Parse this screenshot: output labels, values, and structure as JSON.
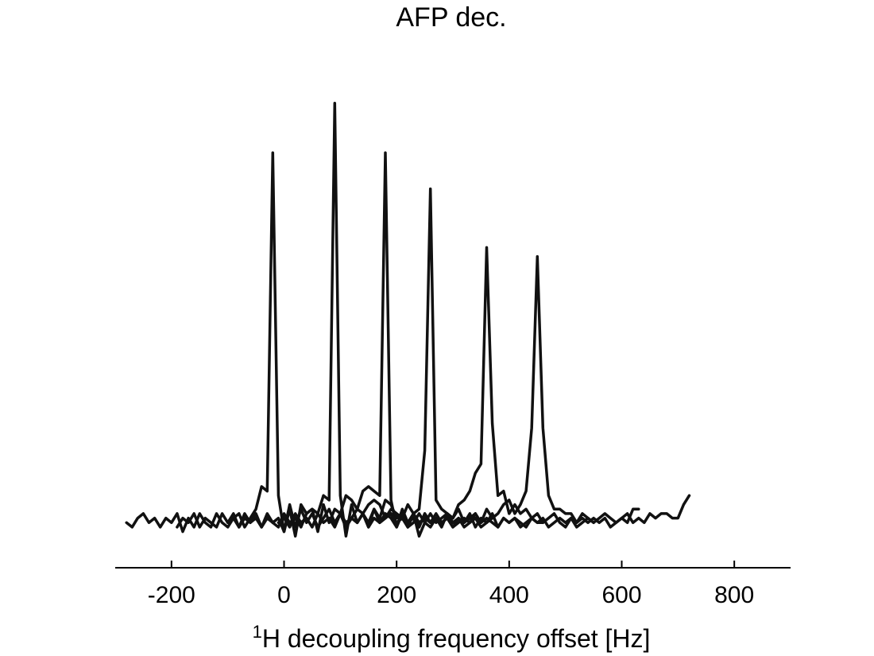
{
  "chart_data": {
    "type": "line",
    "title": "AFP dec.",
    "xlabel_superscript": "1",
    "xlabel": "H decoupling frequency offset [Hz]",
    "ylabel": "",
    "xlim": [
      -300,
      900
    ],
    "ylim": [
      -0.1,
      1.0
    ],
    "xticks": [
      -200,
      0,
      200,
      400,
      600,
      800
    ],
    "xtick_labels": [
      "-200",
      "0",
      "200",
      "400",
      "600",
      "800"
    ],
    "y_axis_visible": false,
    "grid": false,
    "line_color": "#111111",
    "series": [
      {
        "x": [
          -280,
          -270,
          -260,
          -250,
          -240,
          -230,
          -220,
          -210,
          -200,
          -190,
          -180,
          -170,
          -160,
          -150,
          -140,
          -130,
          -120,
          -110,
          -100,
          -90,
          -80,
          -70,
          -60,
          -50,
          -40,
          -30,
          -20,
          -10,
          0,
          10,
          20,
          30,
          40,
          50,
          60,
          70,
          80,
          90,
          100,
          110,
          120,
          130,
          140,
          150,
          160,
          170,
          180,
          190,
          200,
          210,
          220,
          230,
          240,
          250,
          260,
          270,
          280
        ],
        "y": [
          0.0,
          -0.01,
          0.01,
          0.02,
          0.0,
          0.01,
          -0.01,
          0.01,
          0.0,
          0.02,
          -0.02,
          0.01,
          -0.01,
          0.02,
          0.0,
          -0.01,
          0.02,
          0.0,
          -0.01,
          0.01,
          0.02,
          -0.01,
          0.01,
          0.03,
          0.08,
          0.07,
          0.82,
          0.06,
          -0.02,
          0.04,
          -0.01,
          0.03,
          0.0,
          0.02,
          -0.01,
          0.01,
          0.03,
          0.0,
          0.02,
          -0.01,
          0.01,
          0.0,
          0.02,
          -0.01,
          0.01,
          0.0,
          0.01,
          0.02,
          0.0,
          0.01,
          -0.01,
          0.0,
          0.02,
          0.0,
          -0.01,
          0.01,
          0.0
        ]
      },
      {
        "x": [
          -190,
          -180,
          -170,
          -160,
          -150,
          -140,
          -130,
          -120,
          -110,
          -100,
          -90,
          -80,
          -70,
          -60,
          -50,
          -40,
          -30,
          -20,
          -10,
          0,
          10,
          20,
          30,
          40,
          50,
          60,
          70,
          80,
          90,
          100,
          110,
          120,
          130,
          140,
          150,
          160,
          170,
          180,
          190,
          200,
          210,
          220,
          230,
          240,
          250,
          260,
          270,
          280,
          290,
          300,
          310,
          320,
          330,
          340,
          350,
          360,
          370
        ],
        "y": [
          -0.01,
          0.01,
          0.0,
          0.02,
          -0.01,
          0.01,
          0.0,
          -0.01,
          0.02,
          0.0,
          0.01,
          -0.01,
          0.02,
          0.0,
          0.01,
          -0.01,
          0.02,
          0.0,
          0.01,
          -0.02,
          0.03,
          -0.03,
          0.04,
          0.02,
          0.03,
          0.02,
          0.06,
          0.05,
          0.93,
          0.06,
          -0.03,
          0.04,
          0.0,
          0.02,
          -0.01,
          0.03,
          0.0,
          0.02,
          0.01,
          -0.01,
          0.02,
          0.0,
          0.01,
          -0.01,
          0.02,
          0.0,
          0.01,
          0.0,
          0.01,
          -0.01,
          0.0,
          0.01,
          0.0,
          0.01,
          -0.01,
          0.0,
          0.01
        ]
      },
      {
        "x": [
          -100,
          -90,
          -80,
          -70,
          -60,
          -50,
          -40,
          -30,
          -20,
          -10,
          0,
          10,
          20,
          30,
          40,
          50,
          60,
          70,
          80,
          90,
          100,
          110,
          120,
          130,
          140,
          150,
          160,
          170,
          180,
          190,
          200,
          210,
          220,
          230,
          240,
          250,
          260,
          270,
          280,
          290,
          300,
          310,
          320,
          330,
          340,
          350,
          360,
          370,
          380,
          390,
          400,
          410,
          420,
          430,
          440,
          450,
          460
        ],
        "y": [
          0.0,
          0.02,
          -0.01,
          0.01,
          0.0,
          0.02,
          -0.01,
          0.01,
          0.0,
          -0.01,
          0.02,
          0.0,
          0.01,
          -0.01,
          0.02,
          0.03,
          -0.02,
          0.04,
          0.0,
          0.03,
          0.02,
          0.06,
          0.05,
          0.03,
          0.07,
          0.08,
          0.07,
          0.06,
          0.82,
          0.05,
          -0.01,
          0.03,
          0.0,
          0.02,
          -0.01,
          0.02,
          0.0,
          0.01,
          -0.01,
          0.02,
          0.0,
          0.01,
          -0.01,
          0.0,
          0.02,
          0.0,
          0.01,
          0.0,
          -0.01,
          0.01,
          0.0,
          0.01,
          0.0,
          -0.01,
          0.01,
          0.0,
          0.0
        ]
      },
      {
        "x": [
          -10,
          0,
          10,
          20,
          30,
          40,
          50,
          60,
          70,
          80,
          90,
          100,
          110,
          120,
          130,
          140,
          150,
          160,
          170,
          180,
          190,
          200,
          210,
          220,
          230,
          240,
          250,
          260,
          270,
          280,
          290,
          300,
          310,
          320,
          330,
          340,
          350,
          360,
          370,
          380,
          390,
          400,
          410,
          420,
          430,
          440,
          450,
          460,
          470,
          480,
          490,
          500,
          510,
          520,
          530,
          540,
          550
        ],
        "y": [
          0.0,
          0.01,
          -0.01,
          0.02,
          0.0,
          0.01,
          -0.01,
          0.02,
          0.0,
          0.01,
          -0.01,
          0.02,
          0.0,
          0.01,
          0.03,
          0.02,
          0.04,
          0.05,
          0.04,
          0.01,
          0.03,
          0.02,
          0.01,
          0.04,
          0.02,
          0.03,
          0.16,
          0.74,
          0.05,
          0.03,
          0.02,
          0.01,
          0.03,
          0.0,
          0.02,
          -0.01,
          0.01,
          0.0,
          0.02,
          -0.01,
          0.01,
          0.0,
          0.01,
          -0.01,
          0.0,
          0.01,
          0.0,
          0.01,
          -0.01,
          0.0,
          0.01,
          0.0,
          0.01,
          -0.01,
          0.0,
          0.01,
          0.0
        ]
      },
      {
        "x": [
          80,
          90,
          100,
          110,
          120,
          130,
          140,
          150,
          160,
          170,
          180,
          190,
          200,
          210,
          220,
          230,
          240,
          250,
          260,
          270,
          280,
          290,
          300,
          310,
          320,
          330,
          340,
          350,
          360,
          370,
          380,
          390,
          400,
          410,
          420,
          430,
          440,
          450,
          460,
          470,
          480,
          490,
          500,
          510,
          520,
          530,
          540,
          550,
          560,
          570,
          580,
          590,
          600,
          610,
          620,
          630
        ],
        "y": [
          0.01,
          0.0,
          0.02,
          -0.01,
          0.01,
          0.0,
          0.02,
          0.0,
          0.03,
          0.01,
          0.05,
          0.04,
          0.01,
          0.02,
          -0.01,
          0.02,
          -0.03,
          0.0,
          0.02,
          0.0,
          0.01,
          0.02,
          0.01,
          0.04,
          0.05,
          0.07,
          0.11,
          0.13,
          0.61,
          0.22,
          0.06,
          0.07,
          0.02,
          0.04,
          0.02,
          0.03,
          0.01,
          0.02,
          0.0,
          0.01,
          0.02,
          0.0,
          -0.01,
          0.01,
          0.0,
          0.01,
          0.0,
          0.01,
          0.0,
          0.01,
          -0.01,
          0.0,
          0.01,
          0.0,
          0.03,
          0.03
        ]
      },
      {
        "x": [
          170,
          180,
          190,
          200,
          210,
          220,
          230,
          240,
          250,
          260,
          270,
          280,
          290,
          300,
          310,
          320,
          330,
          340,
          350,
          360,
          370,
          380,
          390,
          400,
          410,
          420,
          430,
          440,
          450,
          460,
          470,
          480,
          490,
          500,
          510,
          520,
          530,
          540,
          550,
          560,
          570,
          580,
          590,
          600,
          610,
          620,
          630,
          640,
          650,
          660,
          670,
          680,
          690,
          700,
          710,
          720
        ],
        "y": [
          0.0,
          0.01,
          0.02,
          0.0,
          0.01,
          -0.01,
          0.02,
          0.0,
          0.01,
          0.0,
          0.02,
          0.0,
          0.01,
          -0.01,
          0.01,
          0.0,
          0.01,
          0.02,
          0.0,
          0.03,
          0.01,
          0.02,
          0.04,
          0.05,
          0.02,
          0.04,
          0.07,
          0.21,
          0.59,
          0.21,
          0.06,
          0.03,
          0.03,
          0.02,
          0.02,
          0.0,
          0.02,
          0.01,
          0.0,
          0.01,
          0.02,
          0.01,
          0.0,
          0.01,
          0.02,
          0.0,
          0.01,
          0.0,
          0.02,
          0.01,
          0.02,
          0.02,
          0.01,
          0.01,
          0.04,
          0.06
        ]
      }
    ]
  }
}
